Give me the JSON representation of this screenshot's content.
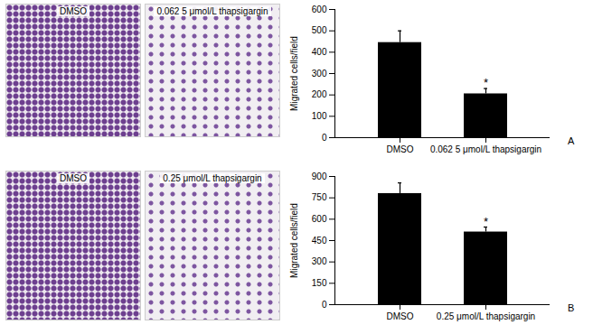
{
  "chart_data": [
    {
      "type": "bar",
      "panel": "A",
      "image_labels": [
        "DMSO",
        "0.062 5 μmol/L thapsigargin"
      ],
      "y_label": "Migrated cells/field",
      "categories": [
        "DMSO",
        "0.062 5 μmol/L thapsigargin"
      ],
      "values": [
        445,
        205
      ],
      "errors": [
        55,
        25
      ],
      "color": "#000000",
      "ylim": [
        0,
        600
      ],
      "yticks": [
        0,
        100,
        200,
        300,
        400,
        500,
        600
      ],
      "annotations": [
        {
          "category": "0.062 5 μmol/L thapsigargin",
          "text": "*"
        }
      ]
    },
    {
      "type": "bar",
      "panel": "B",
      "image_labels": [
        "DMSO",
        "0.25 μmol/L thapsigargin"
      ],
      "y_label": "Migrated cells/field",
      "categories": [
        "DMSO",
        "0.25 μmol/L thapsigargin"
      ],
      "values": [
        780,
        510
      ],
      "errors": [
        75,
        35
      ],
      "color": "#000000",
      "ylim": [
        0,
        900
      ],
      "yticks": [
        0,
        150,
        300,
        450,
        600,
        750,
        900
      ],
      "annotations": [
        {
          "category": "0.25 μmol/L thapsigargin",
          "text": "*"
        }
      ]
    }
  ]
}
